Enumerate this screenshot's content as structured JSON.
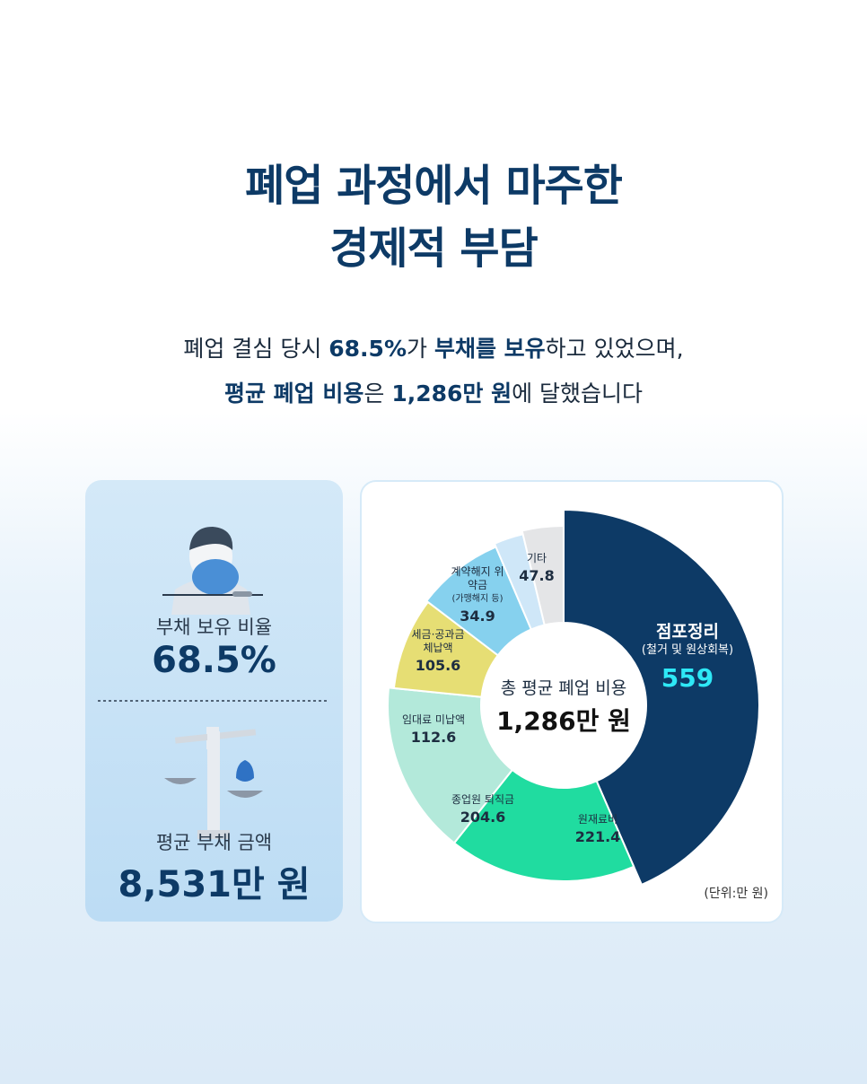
{
  "header": {
    "title": [
      "폐업 과정에서 마주한",
      "경제적 부담"
    ],
    "subtitle": [
      [
        {
          "text": "폐업 결심 당시 ",
          "bold": false
        },
        {
          "text": "68.5%",
          "bold": true
        },
        {
          "text": "가 ",
          "bold": false
        },
        {
          "text": "부채를 보유",
          "bold": true
        },
        {
          "text": "하고 있었으며,",
          "bold": false
        }
      ],
      [
        {
          "text": "평균 폐업 비용",
          "bold": true
        },
        {
          "text": "은 ",
          "bold": false
        },
        {
          "text": "1,286만 원",
          "bold": true
        },
        {
          "text": "에 달했습니다",
          "bold": false
        }
      ]
    ]
  },
  "left_panel": {
    "debt_ratio_label": "부채 보유 비율",
    "debt_ratio": "68.5%",
    "avg_debt_label": "평균 부채 금액",
    "avg_debt": "8,531만 원"
  },
  "chart_data": {
    "type": "donut",
    "categories": [
      "점포정리",
      "원재료비",
      "종업원 퇴직금",
      "임대료 미납액",
      "세금·공과금 체납액",
      "계약해지 위약금",
      "기타"
    ],
    "category_notes": [
      "(철거 및 원상회복)",
      null,
      null,
      null,
      null,
      "(가맹해지 등)",
      null
    ],
    "values": [
      559,
      221.4,
      204.6,
      112.6,
      105.6,
      34.9,
      47.8
    ],
    "colors": [
      "#0d3a66",
      "#20dca0",
      "#b3e9da",
      "#e6de74",
      "#86d1ee",
      "#cfe7f8",
      "#e4e5e7"
    ],
    "highlight_color": "#2ee8f6",
    "center_label": "총 평균 폐업 비용",
    "center_value": "1,286만 원",
    "unit": "(단위:만 원)"
  }
}
